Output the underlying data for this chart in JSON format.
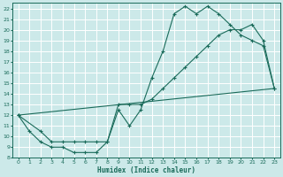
{
  "xlabel": "Humidex (Indice chaleur)",
  "xlim": [
    -0.5,
    23.5
  ],
  "ylim": [
    8,
    22.5
  ],
  "xticks": [
    0,
    1,
    2,
    3,
    4,
    5,
    6,
    7,
    8,
    9,
    10,
    11,
    12,
    13,
    14,
    15,
    16,
    17,
    18,
    19,
    20,
    21,
    22,
    23
  ],
  "yticks": [
    8,
    9,
    10,
    11,
    12,
    13,
    14,
    15,
    16,
    17,
    18,
    19,
    20,
    21,
    22
  ],
  "bg_color": "#cce9e9",
  "line_color": "#1a6b5a",
  "grid_color": "#ffffff",
  "line1_x": [
    0,
    1,
    2,
    3,
    4,
    5,
    6,
    7,
    8,
    9,
    10,
    11,
    12,
    13,
    14,
    15,
    16,
    17,
    18,
    19,
    20,
    21,
    22,
    23
  ],
  "line1_y": [
    12,
    10.5,
    9.5,
    9,
    9,
    8.5,
    8.5,
    8.5,
    9.5,
    12.5,
    11,
    12.5,
    15.5,
    18,
    21.5,
    22.2,
    21.5,
    22.2,
    21.5,
    20.5,
    19.5,
    19,
    18.5,
    14.5
  ],
  "line2_x": [
    0,
    2,
    3,
    4,
    5,
    6,
    7,
    8,
    9,
    10,
    11,
    12,
    13,
    14,
    15,
    16,
    17,
    18,
    19,
    20,
    21,
    22,
    23
  ],
  "line2_y": [
    12,
    10.5,
    9.5,
    9.5,
    9.5,
    9.5,
    9.5,
    9.5,
    13,
    13,
    13,
    13.5,
    14.5,
    15.5,
    16.5,
    17.5,
    18.5,
    19.5,
    20,
    20,
    20.5,
    19,
    14.5
  ],
  "line3_x": [
    0,
    23
  ],
  "line3_y": [
    12,
    14.5
  ]
}
